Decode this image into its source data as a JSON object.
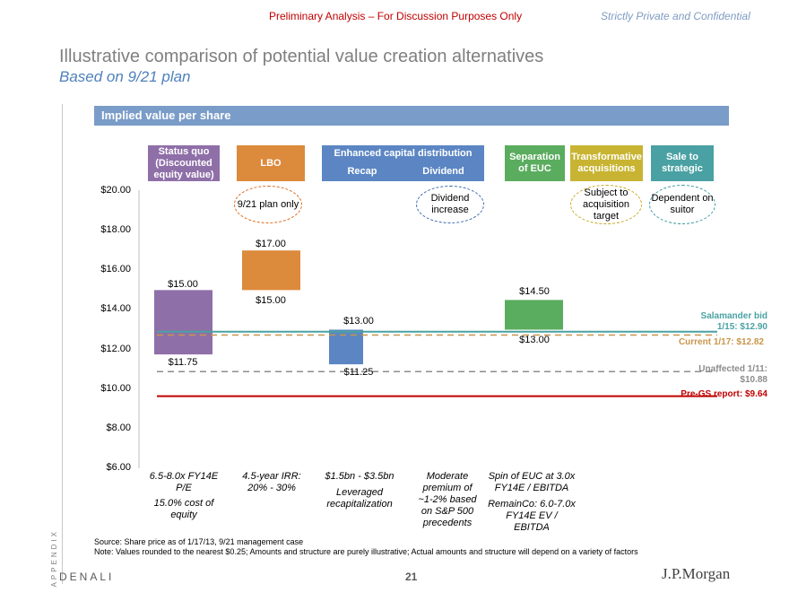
{
  "header": {
    "preliminary": "Preliminary Analysis – For Discussion Purposes Only",
    "confidential": "Strictly Private and Confidential"
  },
  "title": "Illustrative comparison of potential value creation alternatives",
  "subtitle": "Based on 9/21 plan",
  "band_label": "Implied value per share",
  "columns": [
    {
      "label": "Status quo (Discounted equity value)",
      "color": "#8f6fa8"
    },
    {
      "label": "LBO",
      "color": "#dc8a3c"
    },
    {
      "label": "Enhanced capital distribution",
      "sub": [
        "Recap",
        "Dividend"
      ],
      "color": "#5b86c3"
    },
    {
      "label": "Separation of EUC",
      "color": "#5aac5e"
    },
    {
      "label": "Transformative acquisitions",
      "color": "#c8b432"
    },
    {
      "label": "Sale to strategic",
      "color": "#4aa1a3"
    }
  ],
  "bubbles": [
    {
      "text": "9/21 plan only",
      "color": "#dc6a1c"
    },
    {
      "text": "Dividend increase",
      "color": "#3d6bb0"
    },
    {
      "text": "Subject to acquisition target",
      "color": "#c8a820"
    },
    {
      "text": "Dependent on suitor",
      "color": "#3a9aa0"
    }
  ],
  "chart_data": {
    "type": "bar",
    "ylim": [
      6,
      20
    ],
    "yticks": [
      "$6.00",
      "$8.00",
      "$10.00",
      "$12.00",
      "$14.00",
      "$16.00",
      "$18.00",
      "$20.00"
    ],
    "ytick_values": [
      6,
      8,
      10,
      12,
      14,
      16,
      18,
      20
    ],
    "bars": [
      {
        "category": "Status quo",
        "low": 11.75,
        "high": 15.0,
        "low_label": "$11.75",
        "high_label": "$15.00",
        "color": "#8f6fa8"
      },
      {
        "category": "LBO",
        "low": 15.0,
        "high": 17.0,
        "low_label": "$15.00",
        "high_label": "$17.00",
        "color": "#dc8a3c"
      },
      {
        "category": "Recap",
        "low": 11.25,
        "high": 13.0,
        "low_label": "$11.25",
        "high_label": "$13.00",
        "color": "#5b86c3"
      },
      {
        "category": "Separation of EUC",
        "low": 13.0,
        "high": 14.5,
        "low_label": "$13.00",
        "high_label": "$14.50",
        "color": "#5aac5e"
      }
    ],
    "reference_lines": [
      {
        "name": "Salamander bid 1/15: $12.90",
        "value": 12.9,
        "color": "#4aa1a3",
        "style": "solid"
      },
      {
        "name": "Current 1/17: $12.82",
        "value": 12.82,
        "color": "#c8964a",
        "style": "dashed"
      },
      {
        "name": "Unaffected 1/11: $10.88",
        "value": 10.88,
        "color": "#8c8c8c",
        "style": "dashed"
      },
      {
        "name": "Pre-GS report: $9.64",
        "value": 9.64,
        "color": "#c00000",
        "style": "solid"
      }
    ]
  },
  "notes": [
    [
      "6.5-8.0x FY14E P/E",
      "15.0% cost of equity"
    ],
    [
      "4.5-year IRR: 20% - 30%"
    ],
    [
      "$1.5bn - $3.5bn",
      "Leveraged recapitalization"
    ],
    [
      "Moderate premium of ~1-2% based on S&P 500 precedents"
    ],
    [
      "Spin of EUC at 3.0x FY14E / EBITDA",
      "RemainCo: 6.0-7.0x FY14E EV / EBITDA"
    ]
  ],
  "footer": {
    "source": "Source: Share price as of 1/17/13, 9/21 management case",
    "note": "Note: Values rounded to the nearest $0.25; Amounts and structure are purely illustrative; Actual amounts and structure will depend on a variety of factors",
    "appendix": "APPENDIX",
    "denali": "DENALI",
    "page": "21",
    "logo": "J.P.Morgan"
  }
}
